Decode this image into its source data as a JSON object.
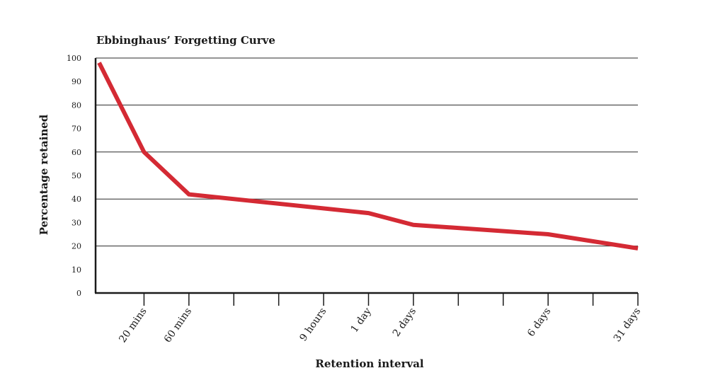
{
  "chart_data": {
    "type": "line",
    "title": "Ebbinghaus’ Forgetting Curve",
    "xlabel": "Retention interval",
    "ylabel": "Percentage retained",
    "ylim": [
      0,
      100
    ],
    "yticks": [
      0,
      10,
      20,
      30,
      40,
      50,
      60,
      70,
      80,
      90,
      100
    ],
    "gridlines_y": [
      20,
      40,
      60,
      80,
      100
    ],
    "x_tick_slots": 13,
    "x_tick_labels": [
      {
        "slot": 1,
        "label": "20 mins"
      },
      {
        "slot": 2,
        "label": "60 mins"
      },
      {
        "slot": 5,
        "label": "9 hours"
      },
      {
        "slot": 6,
        "label": "1 day"
      },
      {
        "slot": 7,
        "label": "2 days"
      },
      {
        "slot": 10,
        "label": "6 days"
      },
      {
        "slot": 12,
        "label": "31 days"
      }
    ],
    "series": [
      {
        "color": "#d42a34",
        "points": [
          {
            "slot": 0.1,
            "y": 98
          },
          {
            "slot": 1,
            "y": 60
          },
          {
            "slot": 2,
            "y": 42
          },
          {
            "slot": 6,
            "y": 34
          },
          {
            "slot": 7,
            "y": 29
          },
          {
            "slot": 10,
            "y": 25
          },
          {
            "slot": 12,
            "y": 19
          }
        ]
      }
    ],
    "grid": true,
    "legend": "none"
  }
}
